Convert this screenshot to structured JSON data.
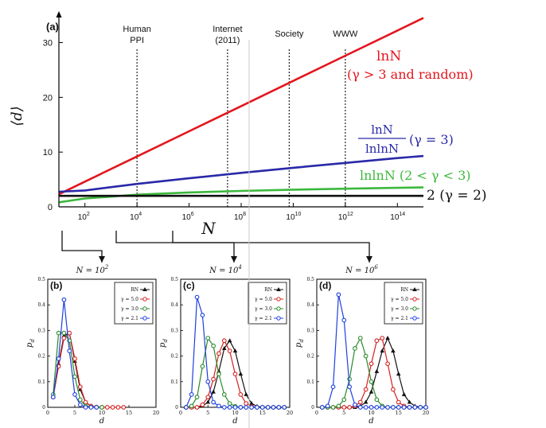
{
  "chart_data": [
    {
      "panel": "(a)",
      "type": "line",
      "ylabel": "⟨d⟩",
      "xlabel": "N",
      "x_scale": "log10",
      "xlim": [
        10,
        1000000000000000.0
      ],
      "ylim": [
        0,
        34
      ],
      "x_ticks": [
        {
          "v": 100.0,
          "label": "10",
          "sup": "2"
        },
        {
          "v": 10000.0,
          "label": "10",
          "sup": "4"
        },
        {
          "v": 1000000.0,
          "label": "10",
          "sup": "6"
        },
        {
          "v": 100000000.0,
          "label": "10",
          "sup": "8"
        },
        {
          "v": 10000000000.0,
          "label": "10",
          "sup": "10"
        },
        {
          "v": 1000000000000.0,
          "label": "10",
          "sup": "12"
        },
        {
          "v": 100000000000000.0,
          "label": "10",
          "sup": "14"
        }
      ],
      "y_ticks": [
        0,
        10,
        20,
        30
      ],
      "reference_lines": [
        {
          "x": 10000.0,
          "label_lines": [
            "Human",
            "PPI"
          ]
        },
        {
          "x": 30000000.0,
          "label_lines": [
            "Internet",
            "(2011)"
          ]
        },
        {
          "x": 7000000000.0,
          "label_lines": [
            "Society"
          ]
        },
        {
          "x": 1000000000000.0,
          "label_lines": [
            "WWW"
          ]
        }
      ],
      "series": [
        {
          "name": "lnN (γ > 3 and random)",
          "color": "#e3161d",
          "x": [
            10,
            100.0,
            10000.0,
            1000000.0,
            100000000.0,
            10000000000.0,
            1000000000000.0,
            100000000000000.0,
            1000000000000000.0
          ],
          "y": [
            2.3,
            4.6,
            9.2,
            13.8,
            18.4,
            23.0,
            27.6,
            32.2,
            34.5
          ]
        },
        {
          "name": "lnN/lnlnN (γ = 3)",
          "color": "#2929a8",
          "x": [
            10,
            100.0,
            10000.0,
            1000000.0,
            100000000.0,
            10000000000.0,
            1000000000000.0,
            100000000000000.0,
            1000000000000000.0
          ],
          "y": [
            2.76,
            3.0,
            4.18,
            5.22,
            6.2,
            7.13,
            8.02,
            8.9,
            9.29
          ]
        },
        {
          "name": "lnlnN (2 < γ < 3)",
          "color": "#3cb83c",
          "x": [
            10,
            100.0,
            10000.0,
            1000000.0,
            100000000.0,
            10000000000.0,
            1000000000000.0,
            100000000000000.0,
            1000000000000000.0
          ],
          "y": [
            0.83,
            1.53,
            2.22,
            2.63,
            2.91,
            3.14,
            3.32,
            3.47,
            3.54
          ]
        },
        {
          "name": "2 (γ = 2)",
          "color": "#111111",
          "x": [
            10,
            1000000000000000.0
          ],
          "y": [
            2,
            2
          ]
        }
      ],
      "annotations": [
        {
          "text": "lnN",
          "sub": "(γ > 3 and random)",
          "color": "#e3161d"
        },
        {
          "num": "lnN",
          "den": "lnlnN",
          "text": "(γ = 3)",
          "color": "#2929a8"
        },
        {
          "text": "lnlnN (2 < γ < 3)",
          "color": "#3cb83c"
        },
        {
          "text": "2 (γ = 2)",
          "color": "#111111"
        }
      ]
    },
    {
      "panel": "(b)",
      "type": "line",
      "title": "N = 10",
      "title_sup": "2",
      "xlabel": "d",
      "ylabel": "p",
      "ylabel_sub": "d",
      "xlim": [
        0,
        20
      ],
      "ylim": [
        0,
        0.5
      ],
      "x_ticks": [
        0,
        5,
        10,
        15,
        20
      ],
      "y_ticks": [
        0,
        0.1,
        0.2,
        0.3,
        0.4,
        0.5
      ],
      "y_tick_labels": [
        "0",
        "0.1",
        "0.2",
        "0.3",
        "0.4",
        "0.5"
      ],
      "legend": [
        {
          "label": "RN",
          "color": "#111111",
          "marker": "triangle"
        },
        {
          "label": "γ = 5.0",
          "color": "#d62020",
          "marker": "circle"
        },
        {
          "label": "γ = 3.0",
          "color": "#2a8a2a",
          "marker": "circle"
        },
        {
          "label": "γ = 2.1",
          "color": "#1f3fe0",
          "marker": "circle"
        }
      ],
      "series": [
        {
          "name": "RN",
          "color": "#111111",
          "marker": "triangle",
          "x": [
            1,
            2,
            3,
            4,
            5,
            6,
            7,
            8,
            9,
            10
          ],
          "y": [
            0.04,
            0.17,
            0.28,
            0.29,
            0.18,
            0.07,
            0.02,
            0.005,
            0.001,
            0
          ]
        },
        {
          "name": "γ = 5.0",
          "color": "#d62020",
          "marker": "circle",
          "x": [
            1,
            2,
            3,
            4,
            5,
            6,
            7,
            8,
            9,
            10,
            11,
            12,
            13,
            14
          ],
          "y": [
            0.04,
            0.16,
            0.27,
            0.29,
            0.19,
            0.08,
            0.02,
            0.005,
            0.001,
            0,
            0,
            0,
            0,
            0
          ]
        },
        {
          "name": "γ = 3.0",
          "color": "#2a8a2a",
          "marker": "circle",
          "x": [
            1,
            2,
            3,
            4,
            5,
            6,
            7,
            8,
            9,
            10
          ],
          "y": [
            0.05,
            0.29,
            0.29,
            0.26,
            0.12,
            0.03,
            0.005,
            0.001,
            0,
            0
          ]
        },
        {
          "name": "γ = 2.1",
          "color": "#1f3fe0",
          "marker": "circle",
          "x": [
            1,
            2,
            3,
            4,
            5,
            6,
            7,
            8,
            9
          ],
          "y": [
            0.04,
            0.19,
            0.42,
            0.22,
            0.05,
            0.01,
            0,
            0,
            0
          ]
        }
      ]
    },
    {
      "panel": "(c)",
      "type": "line",
      "title": "N = 10",
      "title_sup": "4",
      "xlabel": "d",
      "ylabel": "p",
      "ylabel_sub": "d",
      "xlim": [
        0,
        20
      ],
      "ylim": [
        0,
        0.5
      ],
      "x_ticks": [
        0,
        5,
        10,
        15,
        20
      ],
      "y_ticks": [
        0,
        0.1,
        0.2,
        0.3,
        0.4,
        0.5
      ],
      "y_tick_labels": [
        "0",
        "0.1",
        "0.2",
        "0.3",
        "0.4",
        "0.5"
      ],
      "legend": [
        {
          "label": "RN",
          "color": "#111111",
          "marker": "triangle"
        },
        {
          "label": "γ = 5.0",
          "color": "#d62020",
          "marker": "circle"
        },
        {
          "label": "γ = 3.0",
          "color": "#2a8a2a",
          "marker": "circle"
        },
        {
          "label": "γ = 2.1",
          "color": "#1f3fe0",
          "marker": "circle"
        }
      ],
      "series": [
        {
          "name": "RN",
          "color": "#111111",
          "marker": "triangle",
          "x": [
            1,
            2,
            3,
            4,
            5,
            6,
            7,
            8,
            9,
            10,
            11,
            12,
            13,
            14,
            15,
            16,
            17,
            18,
            19
          ],
          "y": [
            0,
            0,
            0,
            0.005,
            0.02,
            0.06,
            0.14,
            0.23,
            0.26,
            0.22,
            0.13,
            0.05,
            0.015,
            0.004,
            0.001,
            0,
            0,
            0,
            0
          ]
        },
        {
          "name": "γ = 5.0",
          "color": "#d62020",
          "marker": "circle",
          "x": [
            1,
            2,
            3,
            4,
            5,
            6,
            7,
            8,
            9,
            10,
            11,
            12,
            13,
            14,
            15,
            16,
            17,
            18,
            19
          ],
          "y": [
            0,
            0,
            0,
            0.01,
            0.04,
            0.11,
            0.21,
            0.26,
            0.22,
            0.13,
            0.05,
            0.015,
            0.003,
            0,
            0,
            0,
            0,
            0,
            0
          ]
        },
        {
          "name": "γ = 3.0",
          "color": "#2a8a2a",
          "marker": "circle",
          "x": [
            1,
            2,
            3,
            4,
            5,
            6,
            7,
            8,
            9,
            10,
            11,
            12,
            13,
            14,
            15,
            16,
            17,
            18,
            19
          ],
          "y": [
            0,
            0.005,
            0.04,
            0.16,
            0.27,
            0.24,
            0.13,
            0.05,
            0.015,
            0.004,
            0,
            0,
            0,
            0,
            0,
            0,
            0,
            0,
            0
          ]
        },
        {
          "name": "γ = 2.1",
          "color": "#1f3fe0",
          "marker": "circle",
          "x": [
            1,
            2,
            3,
            4,
            5,
            6,
            7,
            8,
            9,
            10,
            11,
            12,
            13,
            14,
            15,
            16,
            17,
            18,
            19
          ],
          "y": [
            0,
            0.05,
            0.43,
            0.36,
            0.1,
            0.02,
            0.005,
            0,
            0,
            0,
            0,
            0,
            0,
            0,
            0,
            0,
            0,
            0,
            0
          ]
        }
      ]
    },
    {
      "panel": "(d)",
      "type": "line",
      "title": "N = 10",
      "title_sup": "6",
      "xlabel": "d",
      "ylabel": "p",
      "ylabel_sub": "d",
      "xlim": [
        0,
        20
      ],
      "ylim": [
        0,
        0.5
      ],
      "x_ticks": [
        0,
        5,
        10,
        15,
        20
      ],
      "y_ticks": [
        0,
        0.1,
        0.2,
        0.3,
        0.4,
        0.5
      ],
      "y_tick_labels": [
        "0",
        "0.1",
        "0.2",
        "0.3",
        "0.4",
        "0.5"
      ],
      "legend": [
        {
          "label": "RN",
          "color": "#111111",
          "marker": "triangle"
        },
        {
          "label": "γ = 5.0",
          "color": "#d62020",
          "marker": "circle"
        },
        {
          "label": "γ = 3.0",
          "color": "#2a8a2a",
          "marker": "circle"
        },
        {
          "label": "γ = 2.1",
          "color": "#1f3fe0",
          "marker": "circle"
        }
      ],
      "series": [
        {
          "name": "RN",
          "color": "#111111",
          "marker": "triangle",
          "x": [
            1,
            2,
            3,
            4,
            5,
            6,
            7,
            8,
            9,
            10,
            11,
            12,
            13,
            14,
            15,
            16,
            17,
            18,
            19,
            20
          ],
          "y": [
            0,
            0,
            0,
            0,
            0,
            0,
            0,
            0.005,
            0.02,
            0.06,
            0.14,
            0.22,
            0.27,
            0.22,
            0.13,
            0.05,
            0.02,
            0.005,
            0.001,
            0
          ]
        },
        {
          "name": "γ = 5.0",
          "color": "#d62020",
          "marker": "circle",
          "x": [
            1,
            2,
            3,
            4,
            5,
            6,
            7,
            8,
            9,
            10,
            11,
            12,
            13,
            14,
            15,
            16,
            17,
            18,
            19,
            20
          ],
          "y": [
            0,
            0,
            0,
            0,
            0,
            0,
            0.005,
            0.02,
            0.07,
            0.17,
            0.26,
            0.27,
            0.17,
            0.07,
            0.02,
            0.005,
            0,
            0,
            0,
            0
          ]
        },
        {
          "name": "γ = 3.0",
          "color": "#2a8a2a",
          "marker": "circle",
          "x": [
            1,
            2,
            3,
            4,
            5,
            6,
            7,
            8,
            9,
            10,
            11,
            12,
            13,
            14,
            15,
            16,
            17,
            18,
            19,
            20
          ],
          "y": [
            0,
            0,
            0,
            0.005,
            0.03,
            0.11,
            0.23,
            0.27,
            0.2,
            0.1,
            0.03,
            0.005,
            0,
            0,
            0,
            0,
            0,
            0,
            0,
            0
          ]
        },
        {
          "name": "γ = 2.1",
          "color": "#1f3fe0",
          "marker": "circle",
          "x": [
            1,
            2,
            3,
            4,
            5,
            6,
            7,
            8,
            9,
            10,
            11,
            12,
            13,
            14,
            15,
            16,
            17,
            18,
            19,
            20
          ],
          "y": [
            0,
            0.005,
            0.08,
            0.44,
            0.34,
            0.08,
            0.01,
            0,
            0,
            0,
            0,
            0,
            0,
            0,
            0,
            0,
            0,
            0,
            0,
            0
          ]
        }
      ]
    }
  ]
}
